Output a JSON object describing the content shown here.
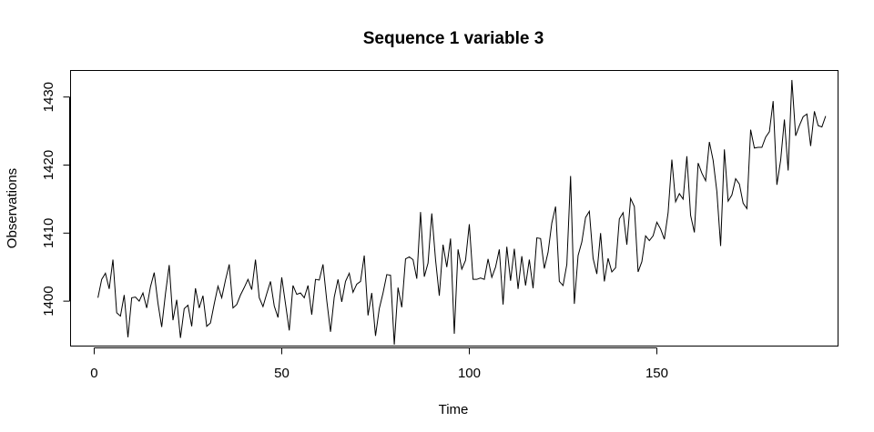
{
  "chart_data": {
    "type": "line",
    "title": "Sequence 1 variable 3",
    "xlabel": "Time",
    "ylabel": "Observations",
    "xlim": [
      -6.3,
      198.3
    ],
    "ylim": [
      1393.4,
      1433.9
    ],
    "xticks": [
      0,
      50,
      100,
      150
    ],
    "yticks": [
      1400,
      1410,
      1420,
      1430
    ],
    "grid": false,
    "legend": "none",
    "series": [
      {
        "values": [
          1400.5,
          1403.2,
          1404.1,
          1401.8,
          1406.1,
          1398.3,
          1397.8,
          1400.9,
          1394.7,
          1400.5,
          1400.6,
          1400.0,
          1401.2,
          1399.0,
          1402.1,
          1404.2,
          1399.7,
          1396.2,
          1401.1,
          1405.3,
          1397.2,
          1400.2,
          1394.6,
          1398.9,
          1399.4,
          1396.3,
          1401.9,
          1399.0,
          1400.8,
          1396.3,
          1396.8,
          1399.6,
          1402.2,
          1400.5,
          1403.1,
          1405.4,
          1399.0,
          1399.5,
          1400.9,
          1402.0,
          1403.2,
          1401.7,
          1406.1,
          1400.5,
          1399.2,
          1401.1,
          1402.9,
          1399.3,
          1397.6,
          1403.5,
          1399.6,
          1395.7,
          1402.3,
          1401.0,
          1401.2,
          1400.5,
          1402.3,
          1398.0,
          1403.2,
          1403.1,
          1405.4,
          1400.1,
          1395.5,
          1400.6,
          1403.2,
          1399.9,
          1402.9,
          1404.1,
          1401.3,
          1402.5,
          1402.9,
          1406.7,
          1397.9,
          1401.2,
          1394.9,
          1398.9,
          1401.2,
          1403.9,
          1403.8,
          1393.6,
          1402.0,
          1399.1,
          1406.2,
          1406.5,
          1406.1,
          1403.3,
          1413.1,
          1403.6,
          1405.6,
          1412.9,
          1406.1,
          1400.8,
          1408.3,
          1405.0,
          1409.2,
          1395.2,
          1407.6,
          1404.7,
          1406.0,
          1411.3,
          1403.2,
          1403.2,
          1403.4,
          1403.2,
          1406.2,
          1403.5,
          1405.0,
          1407.6,
          1399.5,
          1408.0,
          1403.0,
          1407.7,
          1401.8,
          1406.6,
          1402.3,
          1406.1,
          1401.9,
          1409.3,
          1409.2,
          1404.8,
          1407.2,
          1411.5,
          1413.9,
          1402.9,
          1402.3,
          1405.4,
          1418.4,
          1399.6,
          1406.7,
          1408.7,
          1412.3,
          1413.2,
          1406.3,
          1404.0,
          1410.0,
          1402.9,
          1406.3,
          1404.3,
          1404.9,
          1412.1,
          1413.0,
          1408.3,
          1415.1,
          1413.9,
          1404.3,
          1405.8,
          1409.6,
          1408.9,
          1409.6,
          1411.6,
          1410.6,
          1409.1,
          1413.0,
          1420.8,
          1414.6,
          1415.8,
          1415.0,
          1421.3,
          1412.6,
          1410.1,
          1420.3,
          1418.8,
          1417.7,
          1423.4,
          1420.7,
          1416.1,
          1408.1,
          1422.3,
          1414.7,
          1415.6,
          1418.0,
          1417.2,
          1414.4,
          1413.6,
          1425.2,
          1422.5,
          1422.6,
          1422.6,
          1424.1,
          1424.9,
          1429.4,
          1417.1,
          1420.7,
          1426.7,
          1419.2,
          1432.5,
          1424.3,
          1425.8,
          1427.1,
          1427.5,
          1422.8,
          1427.9,
          1425.8,
          1425.6,
          1427.2
        ]
      }
    ]
  }
}
